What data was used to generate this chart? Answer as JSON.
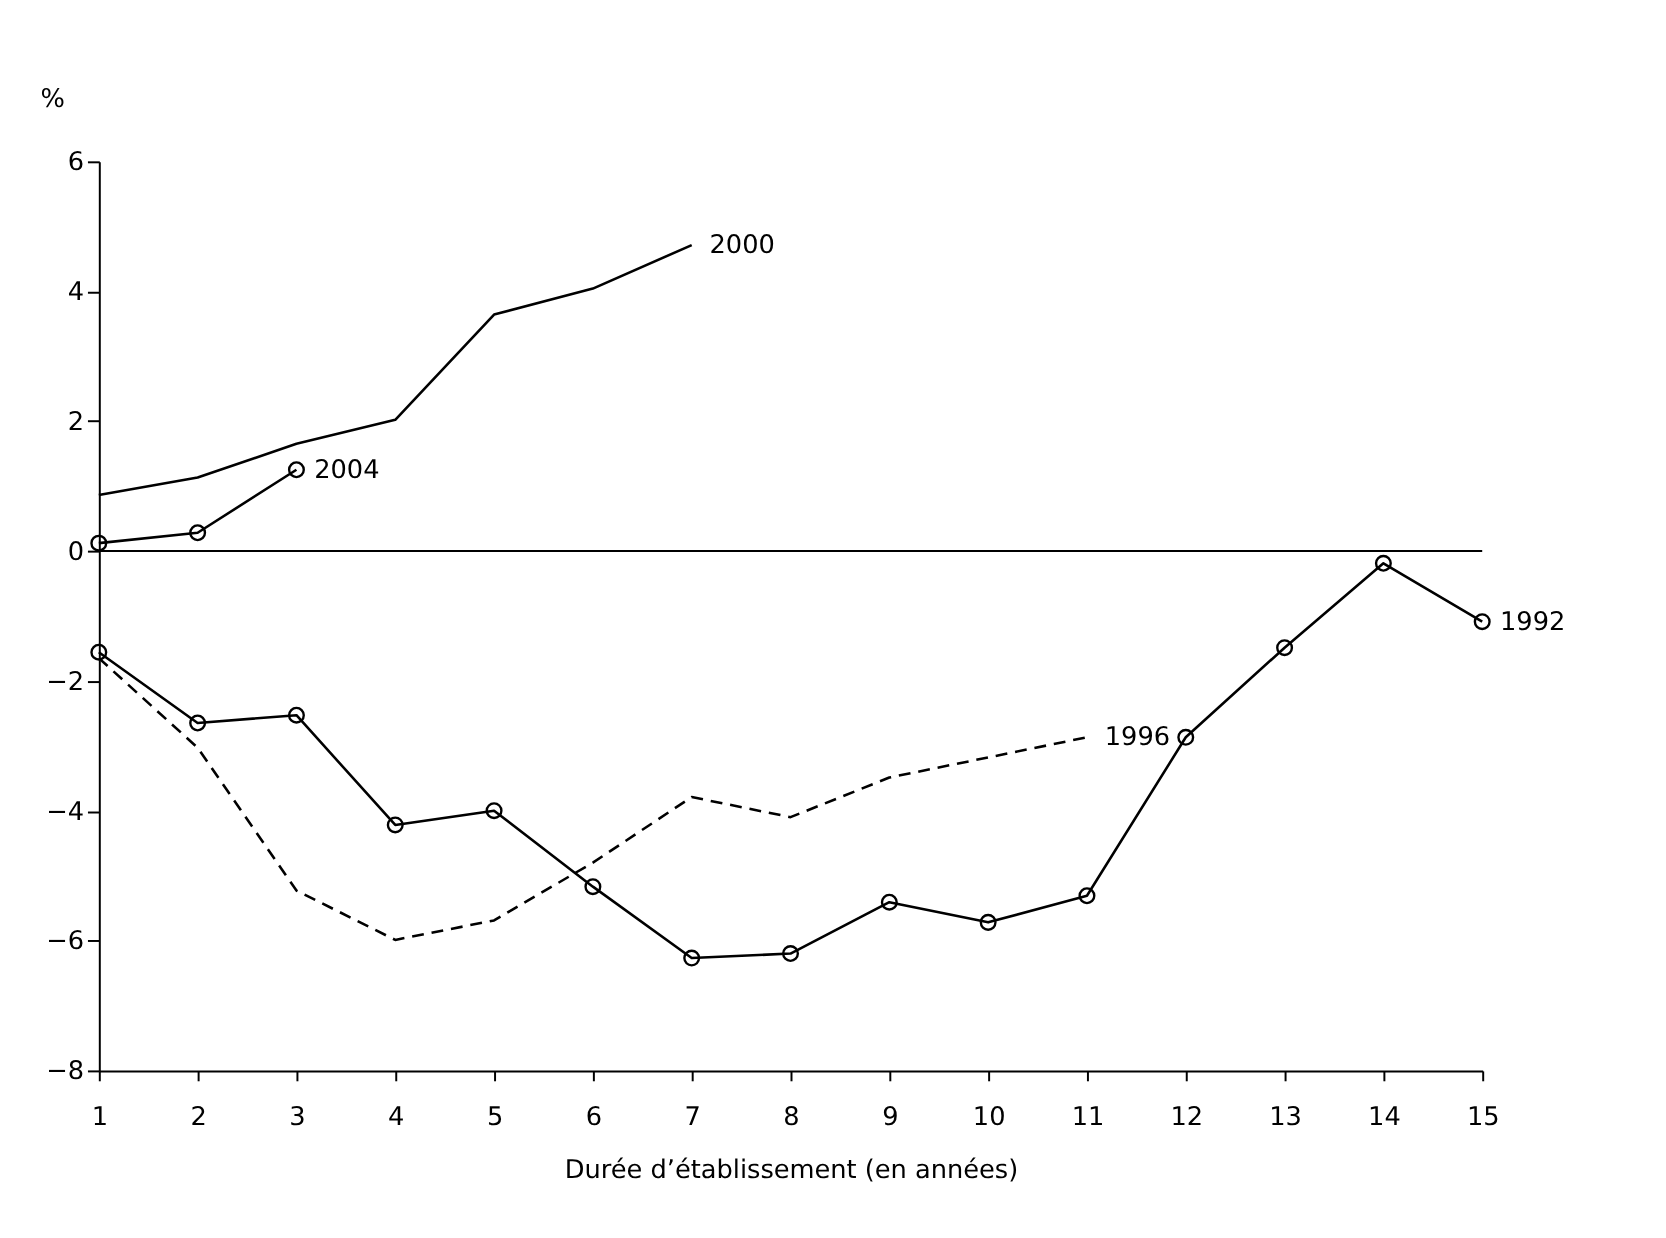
{
  "chart_data": {
    "type": "line",
    "xlabel": "Durée d’établissement (en années)",
    "ylabel": "%",
    "x": [
      1,
      2,
      3,
      4,
      5,
      6,
      7,
      8,
      9,
      10,
      11,
      12,
      13,
      14,
      15
    ],
    "xlim": [
      1,
      15
    ],
    "xticks": [
      1,
      2,
      3,
      4,
      5,
      6,
      7,
      8,
      9,
      10,
      11,
      12,
      13,
      14,
      15
    ],
    "ylim": [
      -8,
      6
    ],
    "yticks": [
      -8,
      -6,
      -4,
      -2,
      0,
      2,
      4,
      6
    ],
    "grid": false,
    "ref_lines": [
      {
        "axis": "y",
        "value": 0,
        "color": "#000000"
      }
    ],
    "series": [
      {
        "name": "2000",
        "color": "#000000",
        "line_style": "solid",
        "marker": "none",
        "x": [
          1,
          2,
          3,
          4,
          5,
          6,
          7
        ],
        "values": [
          0.86,
          1.13,
          1.65,
          2.02,
          3.64,
          4.04,
          4.71
        ]
      },
      {
        "name": "2004",
        "color": "#000000",
        "line_style": "solid",
        "marker": "circle",
        "x": [
          1,
          2,
          3
        ],
        "values": [
          0.12,
          0.28,
          1.25
        ]
      },
      {
        "name": "1996",
        "color": "#000000",
        "line_style": "dashed",
        "marker": "none",
        "x": [
          1,
          2,
          3,
          4,
          5,
          6,
          7,
          8,
          9,
          10,
          11
        ],
        "values": [
          -1.65,
          -3.03,
          -5.23,
          -5.99,
          -5.69,
          -4.8,
          -3.79,
          -4.1,
          -3.49,
          -3.18,
          -2.87
        ]
      },
      {
        "name": "1992",
        "color": "#000000",
        "line_style": "solid",
        "marker": "circle",
        "values": [
          -1.56,
          -2.65,
          -2.53,
          -4.22,
          -4.0,
          -5.17,
          -6.27,
          -6.2,
          -5.41,
          -5.72,
          -5.31,
          -2.87,
          -1.49,
          -0.19,
          -1.09
        ]
      }
    ]
  }
}
